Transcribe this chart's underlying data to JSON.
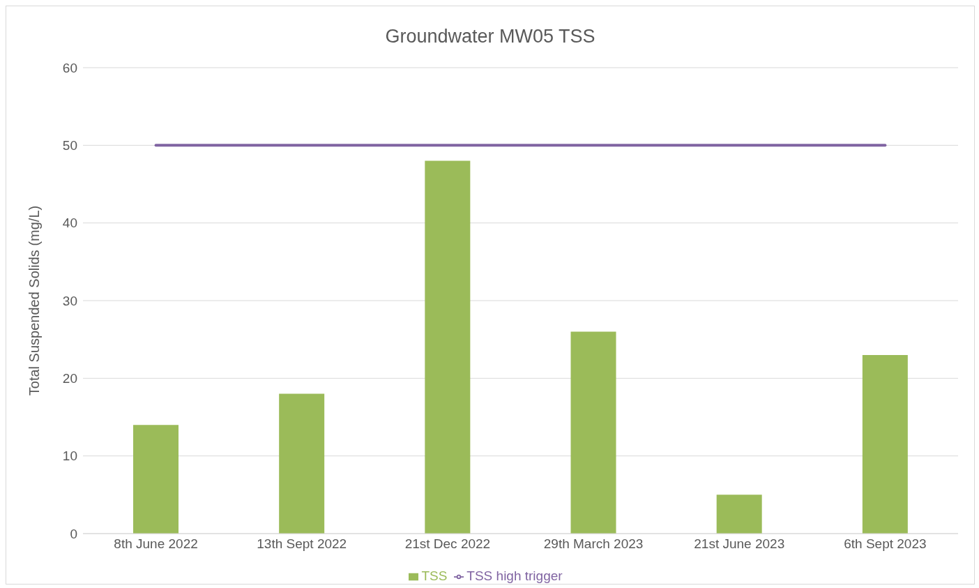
{
  "chart_data": {
    "type": "bar",
    "title": "Groundwater MW05 TSS",
    "ylabel": "Total Suspended Solids (mg/L)",
    "categories": [
      "8th June 2022",
      "13th Sept 2022",
      "21st Dec 2022",
      "29th March 2023",
      "21st June 2023",
      "6th Sept 2023"
    ],
    "series": [
      {
        "name": "TSS",
        "color": "#9bbb59",
        "values": [
          14,
          18,
          48,
          26,
          5,
          23
        ]
      },
      {
        "name": "TSS high trigger",
        "type": "line",
        "color": "#8064a2",
        "values": [
          50,
          50,
          50,
          50,
          50,
          50
        ]
      }
    ],
    "ylim": [
      0,
      60
    ],
    "yticks": [
      0,
      10,
      20,
      30,
      40,
      50,
      60
    ],
    "grid": "y",
    "legend": "bottom",
    "marker": "none"
  }
}
